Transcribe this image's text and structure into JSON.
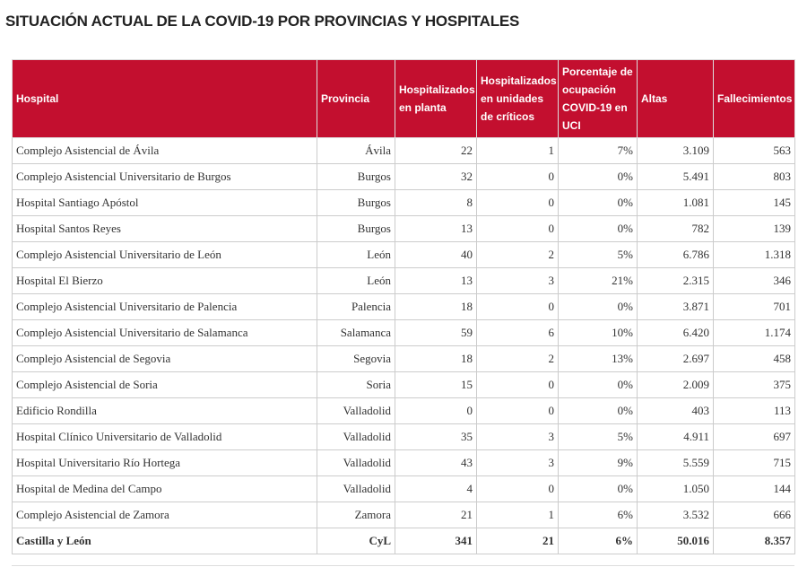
{
  "title": "SITUACIÓN ACTUAL DE LA COVID-19 POR PROVINCIAS Y HOSPITALES",
  "table": {
    "header": [
      "Hospital",
      "Provincia",
      "Hospitalizados en planta",
      "Hospitalizados en unidades de críticos",
      "Porcentaje de ocupación COVID-19 en UCI",
      "Altas",
      "Fallecimientos"
    ],
    "rows": [
      [
        "Complejo Asistencial de Ávila",
        "Ávila",
        "22",
        "1",
        "7%",
        "3.109",
        "563"
      ],
      [
        "Complejo Asistencial Universitario de Burgos",
        "Burgos",
        "32",
        "0",
        "0%",
        "5.491",
        "803"
      ],
      [
        "Hospital Santiago Apóstol",
        "Burgos",
        "8",
        "0",
        "0%",
        "1.081",
        "145"
      ],
      [
        "Hospital Santos Reyes",
        "Burgos",
        "13",
        "0",
        "0%",
        "782",
        "139"
      ],
      [
        "Complejo Asistencial Universitario de León",
        "León",
        "40",
        "2",
        "5%",
        "6.786",
        "1.318"
      ],
      [
        "Hospital El Bierzo",
        "León",
        "13",
        "3",
        "21%",
        "2.315",
        "346"
      ],
      [
        "Complejo Asistencial Universitario de Palencia",
        "Palencia",
        "18",
        "0",
        "0%",
        "3.871",
        "701"
      ],
      [
        "Complejo Asistencial Universitario de Salamanca",
        "Salamanca",
        "59",
        "6",
        "10%",
        "6.420",
        "1.174"
      ],
      [
        "Complejo Asistencial de Segovia",
        "Segovia",
        "18",
        "2",
        "13%",
        "2.697",
        "458"
      ],
      [
        "Complejo Asistencial de Soria",
        "Soria",
        "15",
        "0",
        "0%",
        "2.009",
        "375"
      ],
      [
        "Edificio Rondilla",
        "Valladolid",
        "0",
        "0",
        "0%",
        "403",
        "113"
      ],
      [
        "Hospital Clínico Universitario de Valladolid",
        "Valladolid",
        "35",
        "3",
        "5%",
        "4.911",
        "697"
      ],
      [
        "Hospital Universitario Río Hortega",
        "Valladolid",
        "43",
        "3",
        "9%",
        "5.559",
        "715"
      ],
      [
        "Hospital de Medina del Campo",
        "Valladolid",
        "4",
        "0",
        "0%",
        "1.050",
        "144"
      ],
      [
        "Complejo Asistencial de Zamora",
        "Zamora",
        "21",
        "1",
        "6%",
        "3.532",
        "666"
      ]
    ],
    "total": [
      "Castilla y León",
      "CyL",
      "341",
      "21",
      "6%",
      "50.016",
      "8.357"
    ]
  }
}
